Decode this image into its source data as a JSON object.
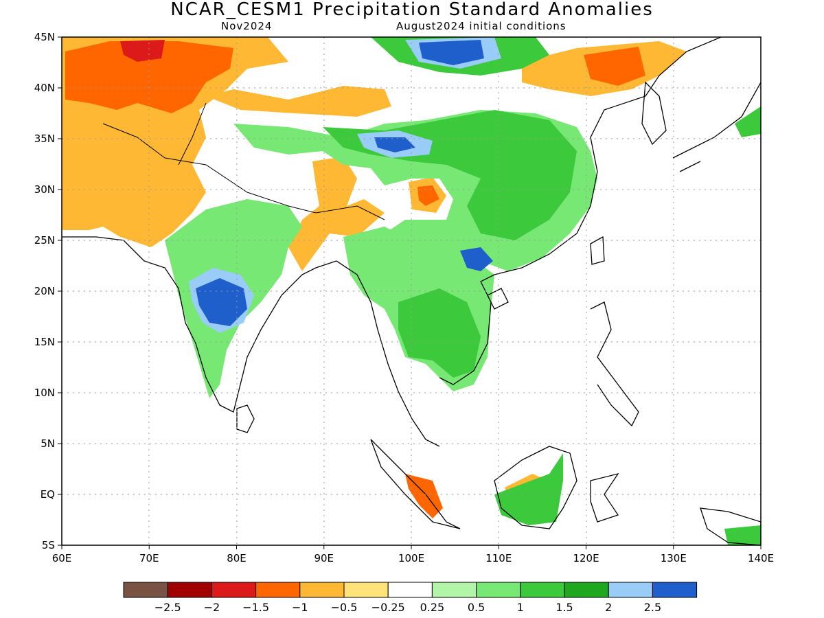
{
  "header": {
    "title": "NCAR_CESM1 Precipitation Standard Anomalies",
    "month": "Nov2024",
    "init": "August2024 initial conditions"
  },
  "axes": {
    "lat_ticks": [
      "45N",
      "40N",
      "35N",
      "30N",
      "25N",
      "20N",
      "15N",
      "10N",
      "5N",
      "EQ",
      "5S"
    ],
    "lon_ticks": [
      "60E",
      "70E",
      "80E",
      "90E",
      "100E",
      "110E",
      "120E",
      "130E",
      "140E"
    ]
  },
  "colorbar": {
    "colors": [
      "#7a5244",
      "#a00000",
      "#dd1a1a",
      "#ff6600",
      "#ffb833",
      "#ffe27a",
      "#ffffff",
      "#b3f5a8",
      "#78e874",
      "#3cc93c",
      "#1fa81f",
      "#99ccf7",
      "#1f5fcc"
    ],
    "labels": [
      "−2.5",
      "−2",
      "−1.5",
      "−1",
      "−0.5",
      "−0.25",
      "0.25",
      "0.5",
      "1",
      "1.5",
      "2",
      "2.5"
    ]
  },
  "colors": {
    "dry_strong": "#ff6600",
    "dry": "#ffb833",
    "dry_weak": "#ffe27a",
    "wet_weak": "#b3f5a8",
    "wet": "#78e874",
    "wet_strong": "#3cc93c",
    "wet_very": "#1fa81f",
    "wet_extreme": "#99ccf7",
    "wet_max": "#1f5fcc"
  }
}
